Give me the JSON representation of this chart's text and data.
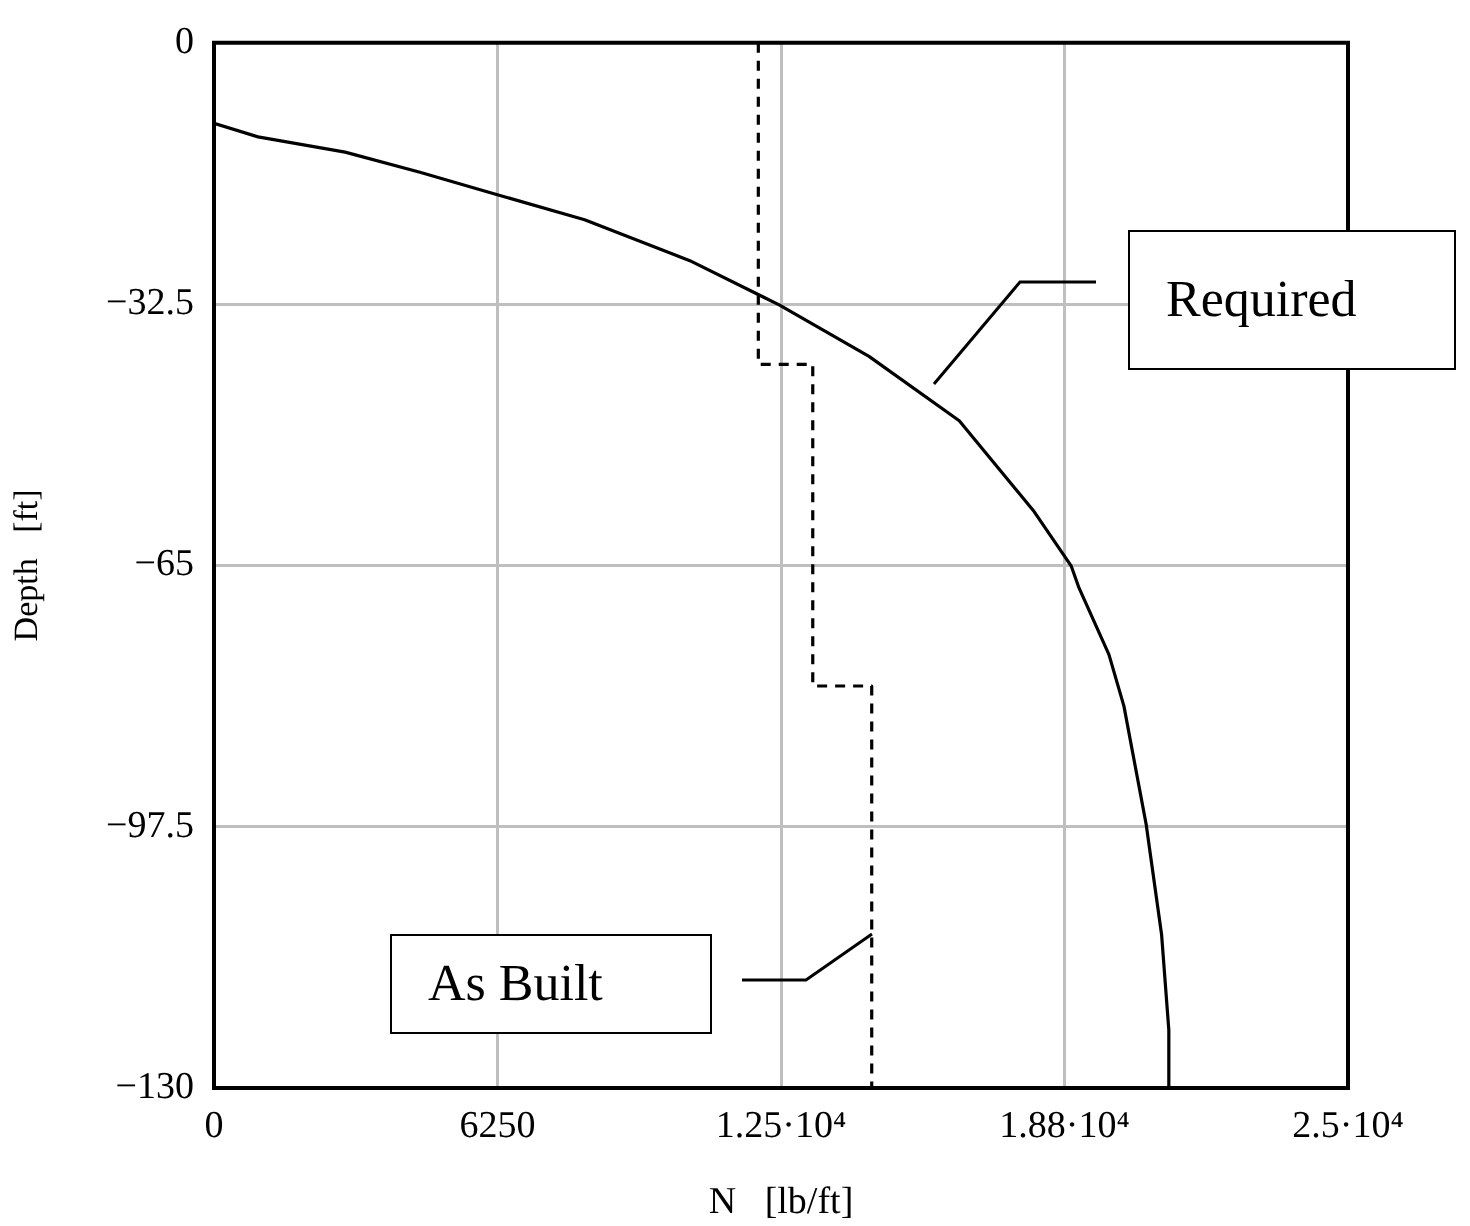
{
  "chart_data": {
    "type": "line",
    "xlabel": "N   [lb/ft]",
    "ylabel": "Depth   [ft]",
    "xlim": [
      0,
      25000
    ],
    "ylim": [
      -130,
      0
    ],
    "xticks": [
      0,
      6250,
      {
        "value": 12500,
        "label": "1.25·10⁴"
      },
      {
        "value": 18750,
        "label": "1.88·10⁴"
      },
      {
        "value": 25000,
        "label": "2.5·10⁴"
      }
    ],
    "yticks": [
      {
        "value": -130,
        "label": "−130"
      },
      {
        "value": -97.5,
        "label": "−97.5"
      },
      {
        "value": -65,
        "label": "−65"
      },
      {
        "value": -32.5,
        "label": "−32.5"
      },
      0
    ],
    "grid": true,
    "legend": false,
    "marker": "none",
    "series": [
      {
        "color": "#000000",
        "line_style": "solid",
        "x": [
          0,
          970,
          2890,
          4540,
          6190,
          8170,
          10490,
          12460,
          14440,
          16430,
          18080,
          18900,
          19070,
          19730,
          20060,
          20550,
          20890,
          21050,
          21050
        ],
        "values": [
          -10,
          -11.7,
          -13.6,
          -16.1,
          -18.8,
          -22,
          -27.1,
          -32.6,
          -39,
          -47,
          -58.3,
          -65.1,
          -67.8,
          -76.1,
          -82.5,
          -97.2,
          -110.9,
          -122.8,
          -130
        ]
      },
      {
        "color": "#000000",
        "line_style": "dashed",
        "x": [
          12000,
          12000,
          13200,
          13200,
          14500,
          14500
        ],
        "values": [
          0,
          -40,
          -40,
          -80,
          -80,
          -130
        ]
      }
    ],
    "annotations": [
      "Required",
      "As Built"
    ]
  }
}
